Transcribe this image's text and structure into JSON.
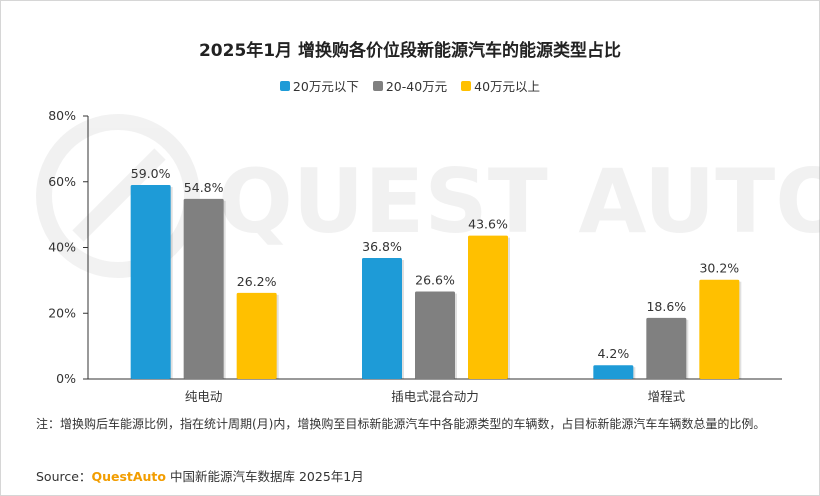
{
  "title": "2025年1月 增换购各价位段新能源汽车的能源类型占比",
  "legend": [
    {
      "label": "20万元以下",
      "color": "#1e9bd7"
    },
    {
      "label": "20-40万元",
      "color": "#808080"
    },
    {
      "label": "40万元以上",
      "color": "#ffc000"
    }
  ],
  "watermark": "QUEST AUTO",
  "note": "注：增换购后车能源比例，指在统计周期(月)内，增换购至目标新能源汽车中各能源类型的车辆数，占目标新能源汽车车辆数总量的比例。",
  "source": {
    "prefix": "Source：",
    "brand": "QuestAuto",
    "text": "中国新能源汽车数据库 2025年1月"
  },
  "chart_data": {
    "type": "bar",
    "title": "2025年1月 增换购各价位段新能源汽车的能源类型占比",
    "categories": [
      "纯电动",
      "插电式混合动力",
      "增程式"
    ],
    "series": [
      {
        "name": "20万元以下",
        "color": "#1e9bd7",
        "values": [
          59.0,
          36.8,
          4.2
        ],
        "labels": [
          "59.0%",
          "36.8%",
          "4.2%"
        ]
      },
      {
        "name": "20-40万元",
        "color": "#808080",
        "values": [
          54.8,
          26.6,
          18.6
        ],
        "labels": [
          "54.8%",
          "26.6%",
          "18.6%"
        ]
      },
      {
        "name": "40万元以上",
        "color": "#ffc000",
        "values": [
          26.2,
          43.6,
          30.2
        ],
        "labels": [
          "26.2%",
          "43.6%",
          "30.2%"
        ]
      }
    ],
    "yticks": [
      "0%",
      "20%",
      "40%",
      "60%",
      "80%"
    ],
    "ylim": [
      0,
      80
    ],
    "legend_position": "top",
    "grid": false
  }
}
